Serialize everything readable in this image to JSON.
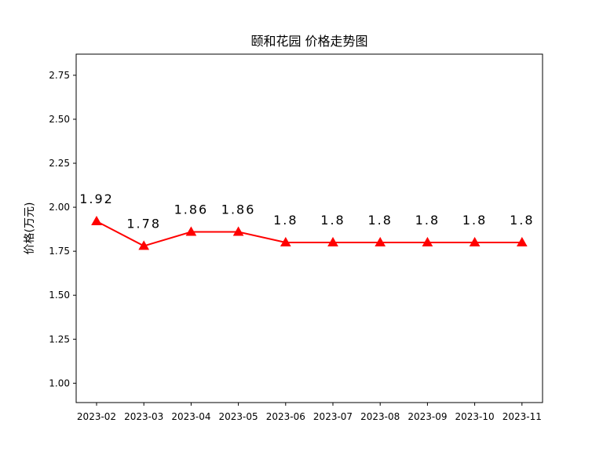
{
  "chart_data": {
    "type": "line",
    "title": "颐和花园 价格走势图",
    "xlabel": "",
    "ylabel": "价格(万元)",
    "categories": [
      "2023-02",
      "2023-03",
      "2023-04",
      "2023-05",
      "2023-06",
      "2023-07",
      "2023-08",
      "2023-09",
      "2023-10",
      "2023-11"
    ],
    "series": [
      {
        "values": [
          1.92,
          1.78,
          1.86,
          1.86,
          1.8,
          1.8,
          1.8,
          1.8,
          1.8,
          1.8
        ],
        "labels": [
          "1.92",
          "1.78",
          "1.86",
          "1.86",
          "1.8",
          "1.8",
          "1.8",
          "1.8",
          "1.8",
          "1.8"
        ],
        "color": "#ff0000",
        "marker": "triangle"
      }
    ],
    "yticks": [
      "1.00",
      "1.25",
      "1.50",
      "1.75",
      "2.00",
      "2.25",
      "2.50",
      "2.75"
    ],
    "ylim": [
      0.89,
      2.87
    ],
    "grid": false,
    "legend": "none"
  }
}
